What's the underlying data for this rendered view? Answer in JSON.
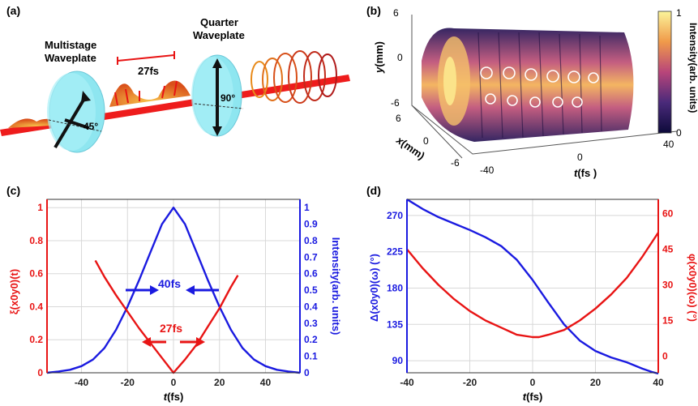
{
  "figure": {
    "panel_a": {
      "label": "(a)",
      "text_multistage_1": "Multistage",
      "text_multistage_2": "Waveplate",
      "text_quarter_1": "Quarter",
      "text_quarter_2": "Waveplate",
      "text_27fs": "27fs",
      "text_45": "45°",
      "text_90": "90°"
    },
    "panel_b": {
      "label": "(b)",
      "ylabel_italic": "y",
      "ylabel_unit": "(mm)",
      "xlabel_italic": "x",
      "xlabel_unit": "(mm)",
      "tlabel_italic": "t",
      "tlabel_unit": "(fs )",
      "y_ticks": [
        "6",
        "0",
        "-6"
      ],
      "x_ticks": [
        "6",
        "0",
        "-6"
      ],
      "t_ticks": [
        "-40",
        "0",
        "40"
      ],
      "colorbar_label": "Intensity(arb. units)",
      "colorbar_ticks": [
        "1",
        "0"
      ]
    },
    "panel_c": {
      "label": "(c)",
      "left_axis_label": "ξ(x0y0)(t)",
      "right_axis_label": "Intensity(arb. units)",
      "xlabel_italic": "t",
      "xlabel_unit": "(fs)",
      "annot_40fs": "40fs",
      "annot_27fs": "27fs"
    },
    "panel_d": {
      "label": "(d)",
      "left_axis_label": "Δ(x0y0)(ω) (°)",
      "right_axis_label": "φ(x0y0)(ω) (°)",
      "xlabel_italic": "t",
      "xlabel_unit": "(fs)"
    }
  },
  "chart_data": [
    {
      "type": "line",
      "panel": "c",
      "xlabel": "t(fs)",
      "ylabel": "ξ(x0y0)(t)",
      "ylabel_right": "Intensity(arb. units)",
      "xlim": [
        -55,
        55
      ],
      "ylim": [
        0,
        1.05
      ],
      "ylim_right": [
        0,
        1.05
      ],
      "x_ticks": [
        -40,
        -20,
        0,
        20,
        40
      ],
      "y_ticks": [
        0,
        0.2,
        0.4,
        0.6,
        0.8,
        1
      ],
      "y_ticks_right": [
        0,
        0.1,
        0.2,
        0.3,
        0.4,
        0.5,
        0.6,
        0.7,
        0.8,
        0.9,
        1
      ],
      "grid": true,
      "series": [
        {
          "name": "Intensity",
          "color": "#1a1ae0",
          "axis": "right",
          "x": [
            -55,
            -50,
            -45,
            -40,
            -35,
            -30,
            -25,
            -20,
            -15,
            -10,
            -5,
            0,
            5,
            10,
            15,
            20,
            25,
            30,
            35,
            40,
            45,
            50,
            55
          ],
          "y": [
            0.0,
            0.008,
            0.018,
            0.04,
            0.08,
            0.15,
            0.26,
            0.4,
            0.56,
            0.73,
            0.9,
            1.0,
            0.9,
            0.73,
            0.56,
            0.4,
            0.26,
            0.15,
            0.08,
            0.04,
            0.018,
            0.008,
            0.0
          ]
        },
        {
          "name": "ξ(x0y0)(t)",
          "color": "#e81414",
          "axis": "left",
          "x": [
            -34,
            -30,
            -25,
            -20,
            -15,
            -10,
            -5,
            0,
            5,
            10,
            15,
            20,
            25,
            28
          ],
          "y": [
            0.68,
            0.58,
            0.47,
            0.37,
            0.27,
            0.18,
            0.09,
            0.0,
            0.08,
            0.17,
            0.28,
            0.39,
            0.52,
            0.59
          ]
        }
      ],
      "annotations": [
        "40fs",
        "27fs"
      ]
    },
    {
      "type": "line",
      "panel": "d",
      "xlabel": "t(fs)",
      "ylabel": "Δ(x0y0)(ω) (°)",
      "ylabel_right": "φ(x0y0)(ω) (°)",
      "xlim": [
        -40,
        40
      ],
      "ylim": [
        75,
        290
      ],
      "ylim_right": [
        -7,
        66
      ],
      "x_ticks": [
        -40,
        -20,
        0,
        20,
        40
      ],
      "y_ticks": [
        90,
        135,
        180,
        225,
        270
      ],
      "y_ticks_right": [
        0,
        15,
        30,
        45,
        60
      ],
      "grid": true,
      "series": [
        {
          "name": "Δ(x0y0)(ω)",
          "color": "#1a1ae0",
          "axis": "left",
          "x": [
            -40,
            -35,
            -30,
            -25,
            -20,
            -15,
            -10,
            -5,
            0,
            5,
            10,
            15,
            20,
            25,
            30,
            35,
            38,
            40
          ],
          "y": [
            290,
            278,
            268,
            260,
            252,
            243,
            232,
            215,
            190,
            162,
            135,
            115,
            102,
            94,
            88,
            80,
            76,
            74
          ]
        },
        {
          "name": "φ(x0y0)(ω)",
          "color": "#e81414",
          "axis": "right",
          "x": [
            -40,
            -35,
            -30,
            -25,
            -20,
            -15,
            -10,
            -5,
            0,
            2,
            5,
            10,
            15,
            20,
            25,
            30,
            35,
            40
          ],
          "y": [
            45,
            37,
            30,
            24,
            19,
            15,
            12,
            9,
            8,
            8,
            9,
            11,
            15,
            20,
            26,
            33,
            42,
            52
          ]
        }
      ]
    }
  ]
}
